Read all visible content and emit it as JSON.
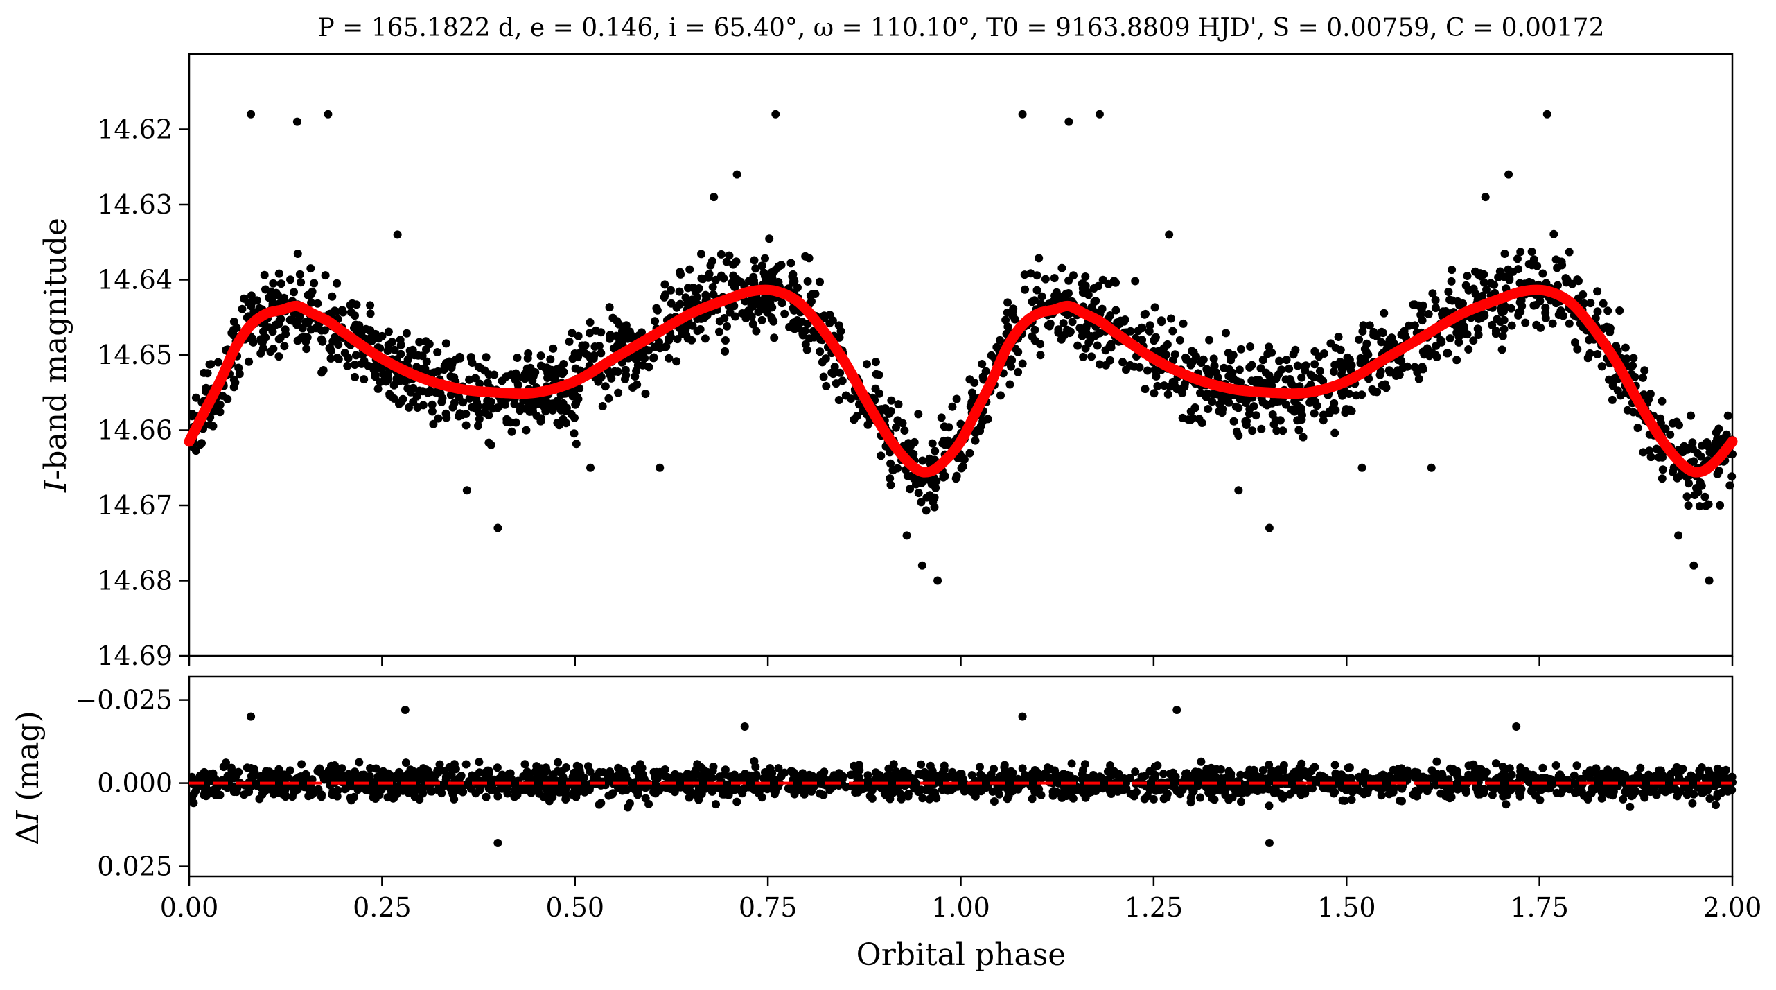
{
  "figure": {
    "title": "P = 165.1822 d, e = 0.146, i = 65.40°, ω = 110.10°, T0 = 9163.8809 HJD', S = 0.00759, C = 0.00172"
  },
  "colors": {
    "points": "#000000",
    "model": "#ff0000",
    "zero_line": "#ff0000",
    "axes": "#000000"
  },
  "chart_data": [
    {
      "type": "scatter",
      "panel": "light-curve",
      "xlabel": "",
      "ylabel_italic": "I",
      "ylabel_rest": "-band magnitude",
      "xlim": [
        0,
        2
      ],
      "ylim": [
        14.69,
        14.61
      ],
      "y_inverted": true,
      "grid": false,
      "yticks": [
        "14.62",
        "14.63",
        "14.64",
        "14.65",
        "14.66",
        "14.67",
        "14.68",
        "14.69"
      ],
      "ytick_values": [
        14.62,
        14.63,
        14.64,
        14.65,
        14.66,
        14.67,
        14.68,
        14.69
      ],
      "xtick_values": [
        0,
        0.25,
        0.5,
        0.75,
        1.0,
        1.25,
        1.5,
        1.75,
        2.0
      ],
      "model_points": {
        "x": [
          0.0,
          0.02,
          0.04,
          0.06,
          0.08,
          0.1,
          0.12,
          0.14,
          0.16,
          0.18,
          0.2,
          0.25,
          0.3,
          0.35,
          0.4,
          0.45,
          0.5,
          0.55,
          0.6,
          0.65,
          0.7,
          0.73,
          0.76,
          0.79,
          0.82,
          0.85,
          0.88,
          0.91,
          0.94,
          0.96,
          0.98,
          1.0,
          1.02,
          1.04,
          1.06,
          1.08,
          1.1,
          1.12,
          1.14,
          1.16,
          1.18,
          1.2,
          1.25,
          1.3,
          1.35,
          1.4,
          1.45,
          1.5,
          1.55,
          1.6,
          1.65,
          1.7,
          1.73,
          1.76,
          1.79,
          1.82,
          1.85,
          1.88,
          1.91,
          1.94,
          1.96,
          1.98,
          2.0
        ],
        "y": [
          14.6615,
          14.6575,
          14.6535,
          14.649,
          14.646,
          14.6445,
          14.644,
          14.6435,
          14.6445,
          14.6455,
          14.647,
          14.6505,
          14.653,
          14.6545,
          14.655,
          14.655,
          14.6535,
          14.6505,
          14.6475,
          14.6445,
          14.6425,
          14.6415,
          14.6415,
          14.643,
          14.6465,
          14.651,
          14.6565,
          14.6615,
          14.665,
          14.6655,
          14.664,
          14.6615,
          14.6575,
          14.6535,
          14.649,
          14.646,
          14.6445,
          14.644,
          14.6435,
          14.6445,
          14.6455,
          14.647,
          14.6505,
          14.653,
          14.6545,
          14.655,
          14.655,
          14.6535,
          14.6505,
          14.6475,
          14.6445,
          14.6425,
          14.6415,
          14.6415,
          14.643,
          14.6465,
          14.651,
          14.6565,
          14.6615,
          14.665,
          14.6655,
          14.664,
          14.6615
        ]
      },
      "observations": {
        "phase_range": [
          0,
          2
        ],
        "scatter_mag": 0.0045,
        "outliers_x": [
          0.08,
          0.14,
          0.18,
          0.27,
          0.36,
          0.4,
          0.52,
          0.61,
          0.68,
          0.71,
          0.76,
          0.93,
          0.95,
          0.97,
          1.08,
          1.14,
          1.18,
          1.27,
          1.36,
          1.4,
          1.52,
          1.61,
          1.68,
          1.71,
          1.76,
          1.93,
          1.95,
          1.97
        ],
        "outliers_y": [
          14.618,
          14.619,
          14.618,
          14.634,
          14.668,
          14.673,
          14.665,
          14.665,
          14.629,
          14.626,
          14.618,
          14.674,
          14.678,
          14.68,
          14.618,
          14.619,
          14.618,
          14.634,
          14.668,
          14.673,
          14.665,
          14.665,
          14.629,
          14.626,
          14.618,
          14.674,
          14.678,
          14.68
        ]
      }
    },
    {
      "type": "scatter",
      "panel": "residuals",
      "xlabel": "Orbital phase",
      "ylabel_delta": "Δ",
      "ylabel_italic": "I",
      "ylabel_rest": " (mag)",
      "xlim": [
        0,
        2
      ],
      "ylim": [
        0.028,
        -0.032
      ],
      "y_inverted": true,
      "grid": false,
      "yticks": [
        "−0.025",
        "0.000",
        "0.025"
      ],
      "ytick_values": [
        -0.025,
        0.0,
        0.025
      ],
      "xticks": [
        "0.00",
        "0.25",
        "0.50",
        "0.75",
        "1.00",
        "1.25",
        "1.50",
        "1.75",
        "2.00"
      ],
      "xtick_values": [
        0,
        0.25,
        0.5,
        0.75,
        1.0,
        1.25,
        1.5,
        1.75,
        2.0
      ],
      "reference_line": {
        "y": 0.0,
        "style": "dashed"
      },
      "observations": {
        "phase_range": [
          0,
          2
        ],
        "scatter_mag": 0.0045,
        "outliers_x": [
          0.08,
          0.28,
          0.4,
          0.72,
          1.08,
          1.28,
          1.4,
          1.72
        ],
        "outliers_y": [
          -0.02,
          -0.022,
          0.018,
          -0.017,
          -0.02,
          -0.022,
          0.018,
          -0.017
        ]
      }
    }
  ]
}
